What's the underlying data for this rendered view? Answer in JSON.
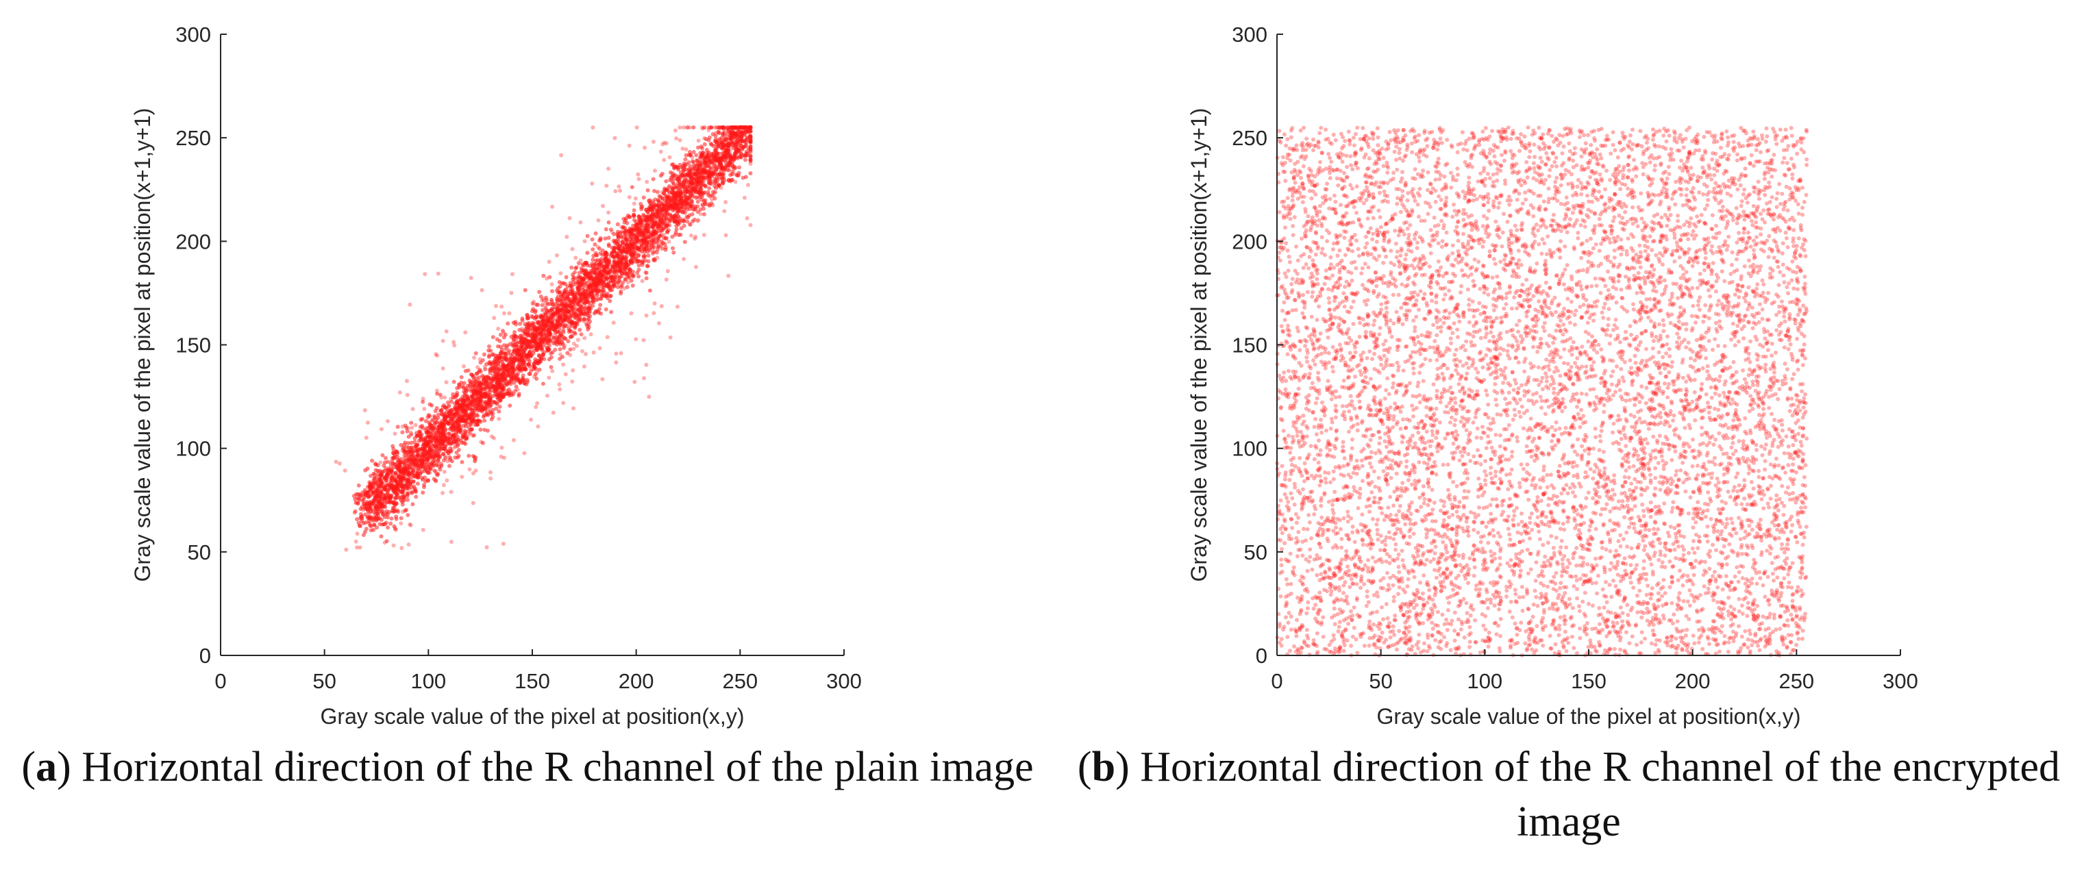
{
  "colors": {
    "point": "#ff1a1a",
    "axis": "#262626",
    "text": "#262626",
    "caption": "#111111"
  },
  "chart_data": [
    {
      "type": "scatter",
      "panel": "a",
      "caption_label": "a",
      "caption_text": "Horizontal direction of the R channel of the plain image",
      "xlabel": "Gray scale value of the pixel at position(x,y)",
      "ylabel": "Gray scale value of the pixel at position(x+1,y+1)",
      "xlim": [
        0,
        300
      ],
      "ylim": [
        0,
        300
      ],
      "xticks": [
        0,
        50,
        100,
        150,
        200,
        250,
        300
      ],
      "yticks": [
        0,
        50,
        100,
        150,
        200,
        250,
        300
      ],
      "grid": false,
      "distribution": {
        "kind": "diagonal-band",
        "x_range": [
          55,
          255
        ],
        "y_range": [
          55,
          255
        ],
        "trend": "y ≈ x",
        "spread_sd": 7,
        "num_points": 5200
      }
    },
    {
      "type": "scatter",
      "panel": "b",
      "caption_label": "b",
      "caption_text": "Horizontal direction of the R channel of the encrypted image",
      "xlabel": "Gray scale value of the pixel at position(x,y)",
      "ylabel": "Gray scale value of the pixel at position(x+1,y+1)",
      "xlim": [
        0,
        300
      ],
      "ylim": [
        0,
        300
      ],
      "xticks": [
        0,
        50,
        100,
        150,
        200,
        250,
        300
      ],
      "yticks": [
        0,
        50,
        100,
        150,
        200,
        250,
        300
      ],
      "grid": false,
      "distribution": {
        "kind": "uniform",
        "x_range": [
          0,
          255
        ],
        "y_range": [
          0,
          255
        ],
        "num_points": 9000
      }
    }
  ]
}
